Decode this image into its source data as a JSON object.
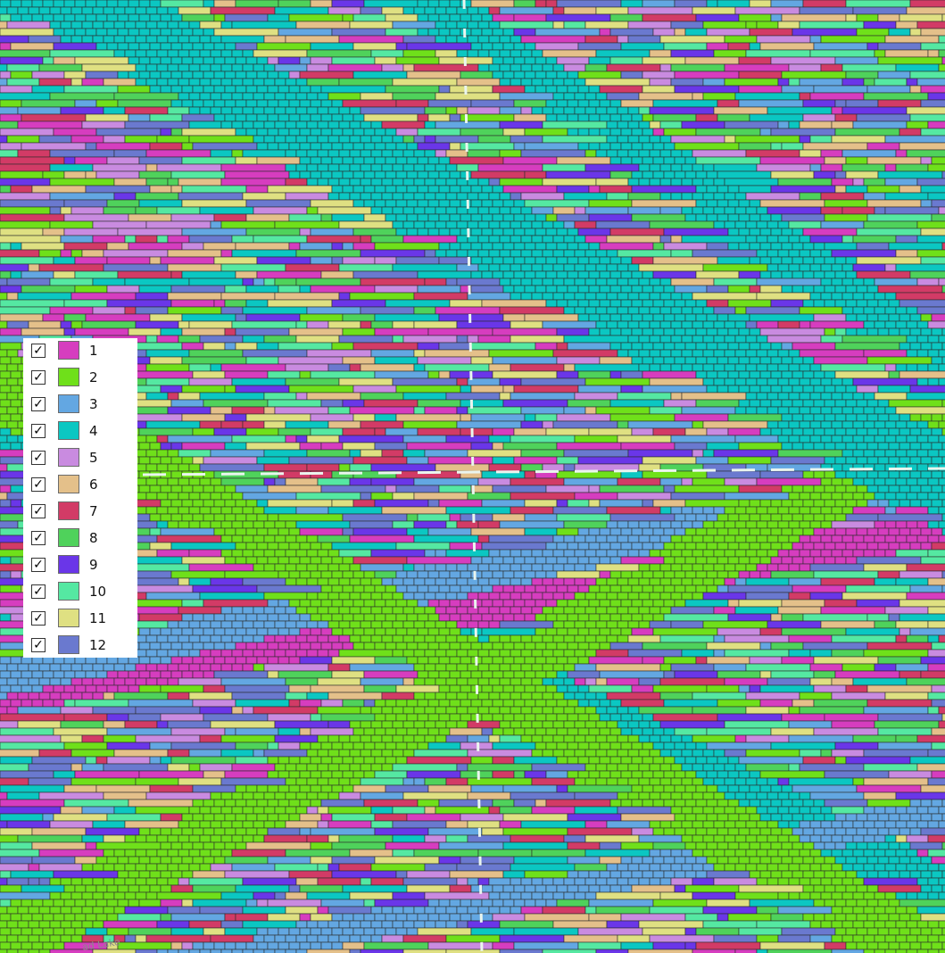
{
  "basemap": {
    "label": "ad Lake",
    "color": "#cfe3d6"
  },
  "legend": {
    "items": [
      {
        "label": "1",
        "color": "#d63dbf",
        "checked": true,
        "check_glyph": "✓"
      },
      {
        "label": "2",
        "color": "#6fe01a",
        "checked": true,
        "check_glyph": "✓"
      },
      {
        "label": "3",
        "color": "#63a7e2",
        "checked": true,
        "check_glyph": "✓"
      },
      {
        "label": "4",
        "color": "#0bc7c2",
        "checked": true,
        "check_glyph": "✓"
      },
      {
        "label": "5",
        "color": "#c98be0",
        "checked": true,
        "check_glyph": "✓"
      },
      {
        "label": "6",
        "color": "#e4c08a",
        "checked": true,
        "check_glyph": "✓"
      },
      {
        "label": "7",
        "color": "#d23b66",
        "checked": true,
        "check_glyph": "✓"
      },
      {
        "label": "8",
        "color": "#4fd25b",
        "checked": true,
        "check_glyph": "✓"
      },
      {
        "label": "9",
        "color": "#6a36e8",
        "checked": true,
        "check_glyph": "✓"
      },
      {
        "label": "10",
        "color": "#55e8a2",
        "checked": true,
        "check_glyph": "✓"
      },
      {
        "label": "11",
        "color": "#dfe082",
        "checked": true,
        "check_glyph": "✓"
      },
      {
        "label": "12",
        "color": "#6a79cf",
        "checked": true,
        "check_glyph": "✓"
      }
    ]
  }
}
